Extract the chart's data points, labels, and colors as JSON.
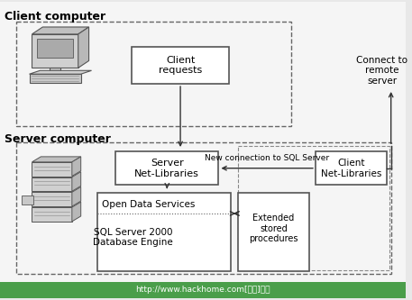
{
  "bg_color": "#e8e8e8",
  "white": "#ffffff",
  "box_edge": "#555555",
  "arrow_color": "#333333",
  "text_color": "#000000",
  "green_bar_color": "#4a9e4a",
  "green_bar_text": "#ffffff",
  "footer_url": "http://www.hackhome.com[网來]提供",
  "client_computer_label": "Client computer",
  "server_computer_label": "Server computer",
  "client_requests_label": "Client\nrequests",
  "server_netlib_label": "Server\nNet-Libraries",
  "open_data_label": "Open Data Services",
  "sql_server_label": "SQL Server 2000\nDatabase Engine",
  "extended_stored_label": "Extended\nstored\nprocedures",
  "client_netlib_label": "Client\nNet-Libraries",
  "new_connection_label": "New connection to SQL Server",
  "connect_remote_label": "Connect to\nremote\nserver",
  "figsize": [
    4.57,
    3.33
  ],
  "dpi": 100
}
